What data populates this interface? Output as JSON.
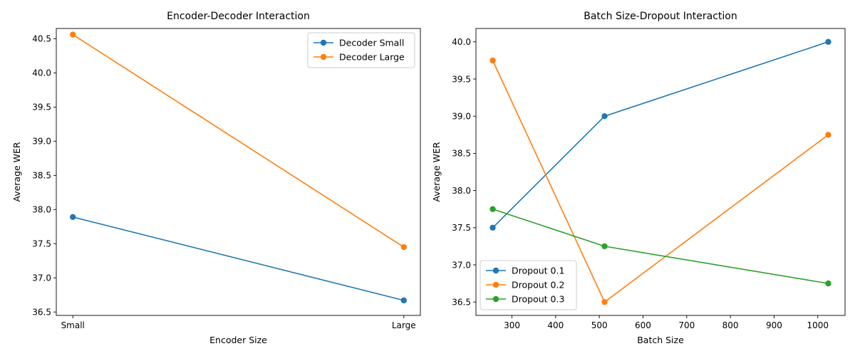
{
  "chart_data": [
    {
      "type": "line",
      "title": "Encoder-Decoder Interaction",
      "xlabel": "Encoder Size",
      "ylabel": "Average WER",
      "categories": [
        "Small",
        "Large"
      ],
      "ylim": [
        36.45,
        40.65
      ],
      "yticks": [
        36.5,
        37.0,
        37.5,
        38.0,
        38.5,
        39.0,
        39.5,
        40.0,
        40.5
      ],
      "legend": "top-right",
      "grid": false,
      "series": [
        {
          "name": "Decoder Small",
          "color": "#1f77b4",
          "values": [
            37.89,
            36.67
          ]
        },
        {
          "name": "Decoder Large",
          "color": "#ff7f0e",
          "values": [
            40.56,
            37.45
          ]
        }
      ]
    },
    {
      "type": "line",
      "title": "Batch Size-Dropout Interaction",
      "xlabel": "Batch Size",
      "ylabel": "Average WER",
      "x": [
        256,
        512,
        1024
      ],
      "xlim": [
        217.6,
        1062.4
      ],
      "xticks": [
        300,
        400,
        500,
        600,
        700,
        800,
        900,
        1000
      ],
      "ylim": [
        36.32,
        40.18
      ],
      "yticks": [
        36.5,
        37.0,
        37.5,
        38.0,
        38.5,
        39.0,
        39.5,
        40.0
      ],
      "legend": "bottom-left",
      "grid": false,
      "series": [
        {
          "name": "Dropout 0.1",
          "color": "#1f77b4",
          "values": [
            37.5,
            39.0,
            40.0
          ]
        },
        {
          "name": "Dropout 0.2",
          "color": "#ff7f0e",
          "values": [
            39.75,
            36.5,
            38.75
          ]
        },
        {
          "name": "Dropout 0.3",
          "color": "#2ca02c",
          "values": [
            37.75,
            37.25,
            36.75
          ]
        }
      ]
    }
  ]
}
